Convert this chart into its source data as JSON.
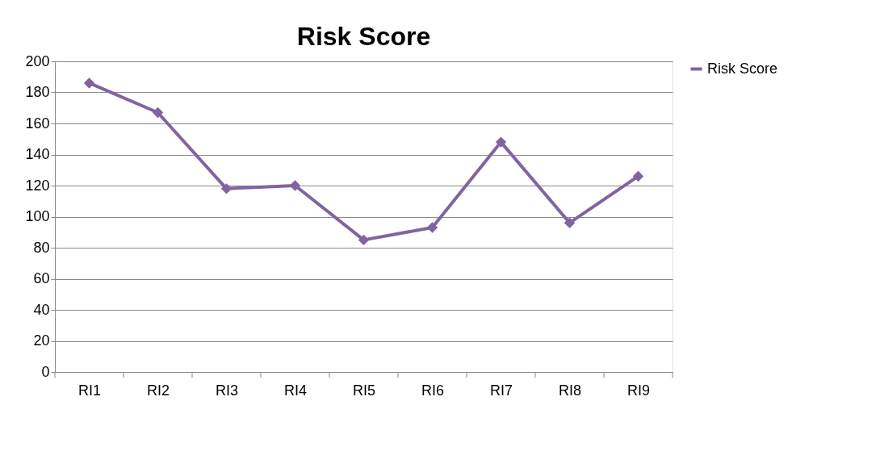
{
  "chart_data": {
    "type": "line",
    "title": "Risk Score",
    "categories": [
      "RI1",
      "RI2",
      "RI3",
      "RI4",
      "RI5",
      "RI6",
      "RI7",
      "RI8",
      "RI9"
    ],
    "series": [
      {
        "name": "Risk Score",
        "color": "#8064a2",
        "values": [
          186,
          167,
          118,
          120,
          85,
          93,
          148,
          96,
          126
        ]
      }
    ],
    "ylim": [
      0,
      200
    ],
    "yticks": [
      0,
      20,
      40,
      60,
      80,
      100,
      120,
      140,
      160,
      180,
      200
    ],
    "grid": "y",
    "legend": "right",
    "marker": "diamond",
    "line_style": "solid"
  }
}
